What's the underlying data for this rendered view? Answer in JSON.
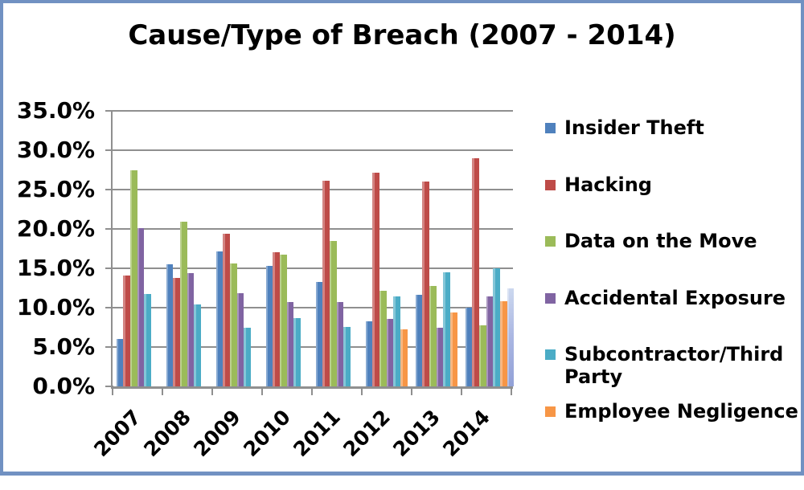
{
  "title": "Cause/Type of Breach (2007 - 2014)",
  "border_color": "#7191c2",
  "axis_color": "#8f8f8f",
  "chart_data": {
    "type": "bar",
    "title": "Cause/Type of Breach (2007 - 2014)",
    "categories": [
      "2007",
      "2008",
      "2009",
      "2010",
      "2011",
      "2012",
      "2013",
      "2014"
    ],
    "series": [
      {
        "name": "Insider Theft",
        "color": "#4F81BD",
        "values": [
          6.0,
          15.5,
          17.1,
          15.3,
          13.3,
          8.3,
          11.6,
          10.0
        ]
      },
      {
        "name": "Hacking",
        "color": "#BE4B48",
        "values": [
          14.1,
          13.8,
          19.4,
          17.0,
          26.1,
          27.1,
          26.0,
          29.0
        ]
      },
      {
        "name": "Data on the Move",
        "color": "#9BBB59",
        "values": [
          27.5,
          20.9,
          15.6,
          16.7,
          18.5,
          12.1,
          12.8,
          7.8
        ]
      },
      {
        "name": "Accidental Exposure",
        "color": "#8064A2",
        "values": [
          20.1,
          14.4,
          11.8,
          10.7,
          10.7,
          8.6,
          7.4,
          11.4
        ]
      },
      {
        "name": "Subcontractor/Third Party",
        "color": "#4BACC6",
        "values": [
          11.7,
          10.4,
          7.4,
          8.7,
          7.6,
          11.4,
          14.5,
          15.0
        ]
      },
      {
        "name": "Employee Negligence",
        "color": "#F79646",
        "values": [
          null,
          null,
          null,
          null,
          null,
          7.2,
          9.4,
          10.8
        ]
      }
    ],
    "extra_bar": {
      "category": "2014",
      "value": 12.4,
      "color_top": "#ccd8ef",
      "color_mid": "#aab6e2",
      "color_bottom": "#92a1d7"
    },
    "y_ticks": [
      "35.0%",
      "30.0%",
      "25.0%",
      "20.0%",
      "15.0%",
      "10.0%",
      "5.0%",
      "0.0%"
    ],
    "ylim": [
      0,
      35
    ],
    "grid": true,
    "legend_position": "right"
  }
}
